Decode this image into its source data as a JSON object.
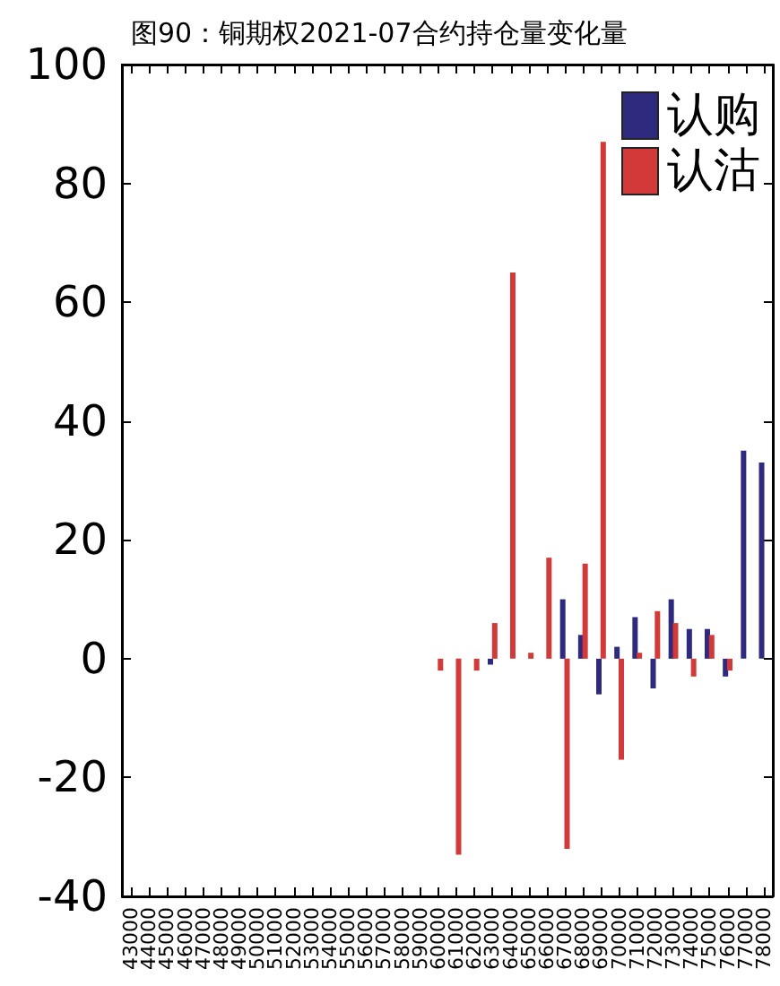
{
  "chart_data": {
    "type": "bar",
    "title": "图90：铜期权2021-07合约持仓量变化量",
    "categories": [
      "43000",
      "44000",
      "45000",
      "46000",
      "47000",
      "48000",
      "49000",
      "50000",
      "51000",
      "52000",
      "53000",
      "54000",
      "55000",
      "56000",
      "57000",
      "58000",
      "59000",
      "60000",
      "61000",
      "62000",
      "63000",
      "64000",
      "65000",
      "66000",
      "67000",
      "68000",
      "69000",
      "70000",
      "71000",
      "72000",
      "73000",
      "74000",
      "75000",
      "76000",
      "77000",
      "78000"
    ],
    "series": [
      {
        "name": "认购",
        "color": "#2e2a7e",
        "values": [
          0,
          0,
          0,
          0,
          0,
          0,
          0,
          0,
          0,
          0,
          0,
          0,
          0,
          0,
          0,
          0,
          0,
          0,
          0,
          0,
          -1,
          0,
          0,
          0,
          10,
          4,
          -6,
          2,
          7,
          -5,
          10,
          5,
          5,
          -3,
          35,
          33
        ]
      },
      {
        "name": "认沽",
        "color": "#d13a38",
        "values": [
          0,
          0,
          0,
          0,
          0,
          0,
          0,
          0,
          0,
          0,
          0,
          0,
          0,
          0,
          0,
          0,
          0,
          -2,
          -33,
          -2,
          6,
          65,
          1,
          17,
          -32,
          16,
          87,
          -17,
          1,
          8,
          6,
          -3,
          4,
          -2,
          0,
          0
        ]
      }
    ],
    "ylim": [
      -40,
      100
    ],
    "yticks": [
      -40,
      -20,
      0,
      20,
      40,
      60,
      80,
      100
    ],
    "grid": false,
    "legend": "top right"
  }
}
